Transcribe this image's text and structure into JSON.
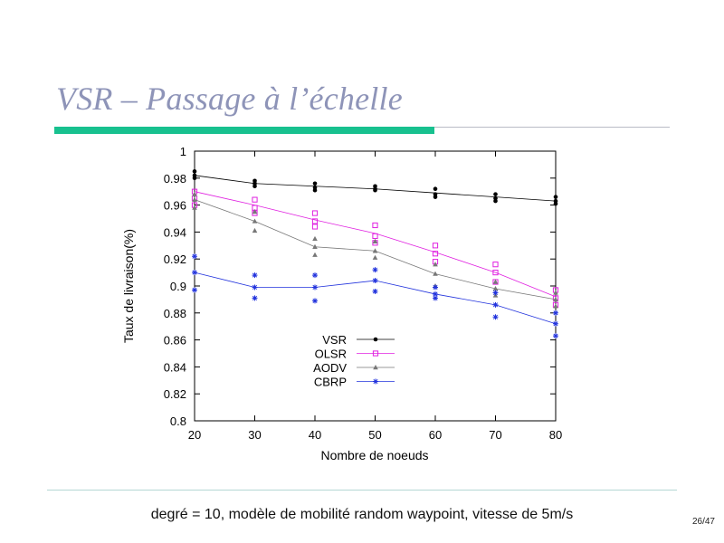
{
  "slide": {
    "title": "VSR – Passage à l’échelle",
    "caption": "degré = 10, modèle de mobilité random waypoint, vitesse de 5m/s",
    "page": "26/47"
  },
  "colors": {
    "title": "#8e94b8",
    "accent_bar": "#18c18f"
  },
  "chart_data": {
    "type": "line",
    "xlabel": "Nombre de noeuds",
    "ylabel": "Taux de livraison(%)",
    "x": [
      20,
      30,
      40,
      50,
      60,
      70,
      80
    ],
    "xlim": [
      20,
      80
    ],
    "ylim": [
      0.8,
      1.0
    ],
    "xticks": [
      "20",
      "30",
      "40",
      "50",
      "60",
      "70",
      "80"
    ],
    "yticks": [
      "0.8",
      "0.82",
      "0.84",
      "0.86",
      "0.88",
      "0.9",
      "0.92",
      "0.94",
      "0.96",
      "0.98",
      "1"
    ],
    "grid": false,
    "legend_position": "center",
    "series": [
      {
        "name": "VSR",
        "color": "#000000",
        "marker": "circle",
        "values": [
          0.982,
          0.976,
          0.974,
          0.972,
          0.969,
          0.966,
          0.963
        ],
        "samples": [
          [
            0.985,
            0.982,
            0.98
          ],
          [
            0.978,
            0.976,
            0.974
          ],
          [
            0.976,
            0.973,
            0.971
          ],
          [
            0.974,
            0.972,
            0.971
          ],
          [
            0.972,
            0.968,
            0.966
          ],
          [
            0.968,
            0.965,
            0.963
          ],
          [
            0.966,
            0.963,
            0.961
          ]
        ]
      },
      {
        "name": "OLSR",
        "color": "#e020e0",
        "marker": "square",
        "values": [
          0.97,
          0.96,
          0.949,
          0.939,
          0.925,
          0.91,
          0.892
        ],
        "samples": [
          [
            0.97,
            0.965,
            0.96
          ],
          [
            0.964,
            0.958,
            0.954
          ],
          [
            0.954,
            0.948,
            0.944
          ],
          [
            0.945,
            0.937,
            0.932
          ],
          [
            0.93,
            0.924,
            0.918
          ],
          [
            0.916,
            0.91,
            0.903
          ],
          [
            0.897,
            0.891,
            0.886
          ]
        ]
      },
      {
        "name": "AODV",
        "color": "#777777",
        "marker": "triangle",
        "values": [
          0.964,
          0.948,
          0.929,
          0.926,
          0.909,
          0.898,
          0.89
        ],
        "samples": [
          [
            0.968,
            0.964,
            0.958
          ],
          [
            0.955,
            0.948,
            0.941
          ],
          [
            0.935,
            0.929,
            0.923
          ],
          [
            0.933,
            0.926,
            0.921
          ],
          [
            0.916,
            0.909,
            0.9
          ],
          [
            0.903,
            0.898,
            0.893
          ],
          [
            0.895,
            0.89,
            0.885
          ]
        ]
      },
      {
        "name": "CBRP",
        "color": "#2233dd",
        "marker": "star",
        "values": [
          0.91,
          0.899,
          0.899,
          0.904,
          0.894,
          0.886,
          0.872
        ],
        "samples": [
          [
            0.922,
            0.91,
            0.897
          ],
          [
            0.908,
            0.899,
            0.891
          ],
          [
            0.908,
            0.899,
            0.889
          ],
          [
            0.912,
            0.904,
            0.896
          ],
          [
            0.899,
            0.894,
            0.891
          ],
          [
            0.895,
            0.886,
            0.877
          ],
          [
            0.88,
            0.872,
            0.863
          ]
        ]
      }
    ]
  }
}
